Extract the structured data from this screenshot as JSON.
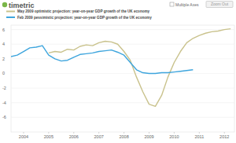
{
  "page": {
    "logo": "timetric",
    "checkbox": "Multiple Axes",
    "button": "Zoom Out"
  },
  "chart_data": {
    "type": "line",
    "series": [
      {
        "name": "May 2009 optimistic projection: year-on-year GDP growth of the UK economy",
        "color": "#c9c28c",
        "x": [
          2005.0,
          2005.25,
          2005.5,
          2005.75,
          2006.0,
          2006.25,
          2006.5,
          2006.75,
          2007.0,
          2007.25,
          2007.5,
          2007.75,
          2008.0,
          2008.25,
          2008.5,
          2008.75,
          2009.0,
          2009.25,
          2009.5,
          2009.75,
          2010.0,
          2010.25,
          2010.5,
          2010.75,
          2011.0,
          2011.25,
          2011.5,
          2011.75,
          2012.0,
          2012.25
        ],
        "values": [
          2.8,
          3.0,
          2.9,
          3.3,
          3.2,
          3.7,
          3.9,
          3.8,
          4.2,
          4.4,
          4.3,
          4.0,
          3.0,
          1.8,
          -0.5,
          -2.5,
          -4.2,
          -4.5,
          -3.0,
          -0.5,
          1.5,
          3.0,
          4.2,
          4.8,
          5.2,
          5.5,
          5.7,
          5.8,
          6.0,
          6.1
        ]
      },
      {
        "name": "Feb 2009 pessimistic projection: year-on-year GDP growth of the UK economy",
        "color": "#3ea5dd",
        "x": [
          2003.5,
          2003.75,
          2004.0,
          2004.25,
          2004.5,
          2004.75,
          2005.0,
          2005.25,
          2005.5,
          2005.75,
          2006.0,
          2006.25,
          2006.5,
          2006.75,
          2007.0,
          2007.25,
          2007.5,
          2007.75,
          2008.0,
          2008.25,
          2008.5,
          2008.75,
          2009.0,
          2009.25,
          2009.5,
          2009.75,
          2010.0,
          2010.25,
          2010.5,
          2010.75
        ],
        "values": [
          2.3,
          2.5,
          3.0,
          3.5,
          3.6,
          3.8,
          2.5,
          2.0,
          1.7,
          1.8,
          2.2,
          2.6,
          2.7,
          2.8,
          3.0,
          3.1,
          3.2,
          2.9,
          2.5,
          1.5,
          0.5,
          0.1,
          0.0,
          0.0,
          0.1,
          0.1,
          0.2,
          0.3,
          0.4,
          0.5
        ]
      }
    ],
    "xlim": [
      2003.5,
      2012.4
    ],
    "xticks": [
      2004,
      2005,
      2006,
      2007,
      2008,
      2009,
      2010,
      2011,
      2012
    ],
    "ylim": [
      -8,
      6.6
    ],
    "yticks": [
      -6,
      -4,
      -2,
      0,
      2,
      4,
      6
    ],
    "grid": true,
    "legend": "top"
  }
}
